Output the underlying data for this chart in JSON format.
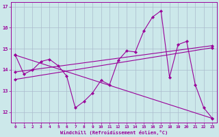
{
  "xlabel": "Windchill (Refroidissement éolien,°C)",
  "bg_color": "#cce8ea",
  "line_color": "#990099",
  "grid_color": "#aabbcc",
  "xlim": [
    -0.5,
    23.5
  ],
  "ylim": [
    11.5,
    17.2
  ],
  "xticks": [
    0,
    1,
    2,
    3,
    4,
    5,
    6,
    7,
    8,
    9,
    10,
    11,
    12,
    13,
    14,
    15,
    16,
    17,
    18,
    19,
    20,
    21,
    22,
    23
  ],
  "yticks": [
    12,
    13,
    14,
    15,
    16,
    17
  ],
  "series1": [
    [
      0,
      14.7
    ],
    [
      1,
      13.8
    ],
    [
      2,
      14.0
    ],
    [
      3,
      14.4
    ],
    [
      4,
      14.5
    ],
    [
      5,
      14.2
    ],
    [
      6,
      13.7
    ],
    [
      7,
      12.2
    ],
    [
      8,
      12.5
    ],
    [
      9,
      12.9
    ],
    [
      10,
      13.5
    ],
    [
      11,
      13.3
    ],
    [
      12,
      14.45
    ],
    [
      13,
      14.9
    ],
    [
      14,
      14.85
    ],
    [
      15,
      15.85
    ],
    [
      16,
      16.5
    ],
    [
      17,
      16.8
    ],
    [
      18,
      13.65
    ],
    [
      19,
      15.2
    ],
    [
      20,
      15.35
    ],
    [
      21,
      13.3
    ],
    [
      22,
      12.2
    ],
    [
      23,
      11.7
    ]
  ],
  "series2_x": [
    0,
    23
  ],
  "series2_y": [
    14.7,
    11.7
  ],
  "series3_x": [
    0,
    23
  ],
  "series3_y": [
    13.9,
    15.15
  ],
  "series4_x": [
    0,
    23
  ],
  "series4_y": [
    13.55,
    15.05
  ]
}
